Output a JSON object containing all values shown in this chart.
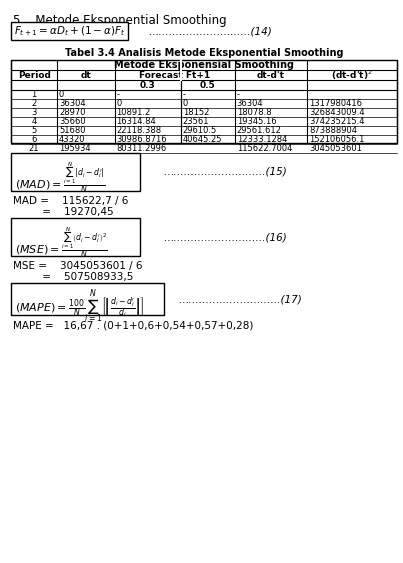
{
  "title_section": "5.   Metode Eksponential Smoothing",
  "formula_14": "F_{t+1} = \\alpha D_t + (1-\\alpha) F_t",
  "formula_14_label": "…………..………..…..(14)",
  "table_title": "Tabel 3.4 Analisis Metode Eksponential Smoothing",
  "table_subtitle": "Metode Eksponensial Smoothing",
  "col_headers": [
    "Period",
    "dt",
    "Forecast Ft+1",
    "",
    "dt-d't",
    "(dt-d't)²"
  ],
  "sub_headers": [
    "0.3",
    "0.5"
  ],
  "rows": [
    [
      "1",
      "0",
      "-",
      "-",
      "-",
      ""
    ],
    [
      "2",
      "36304",
      "0",
      "0",
      "36304",
      "1317980416"
    ],
    [
      "3",
      "28970",
      "10891.2",
      "18152",
      "18078.8",
      "326843009.4"
    ],
    [
      "4",
      "35660",
      "16314.84",
      "23561",
      "19345.16",
      "374235215.4"
    ],
    [
      "5",
      "51680",
      "22118.388",
      "29610.5",
      "29561.612",
      "873888904"
    ],
    [
      "6",
      "43320",
      "30986.8716",
      "40645.25",
      "12333.1284",
      "152106056.1"
    ],
    [
      "21",
      "195934",
      "80311.2996",
      "",
      "115622.7004",
      "3045053601"
    ]
  ],
  "mad_formula_label": "…………..………..…..(15)",
  "mad_calc1": "MAD =    115622,7 / 6",
  "mad_calc2": "         =    19270,45",
  "mse_formula_label": "…………..………..…..(16)",
  "mse_calc1": "MSE =    3045053601 / 6",
  "mse_calc2": "         =    507508933,5",
  "mape_formula_label": "…………..………..…..(17)",
  "mape_calc1": "MAPE =   16,67 . (0+1+0,6+0,54+0,57+0,28)"
}
